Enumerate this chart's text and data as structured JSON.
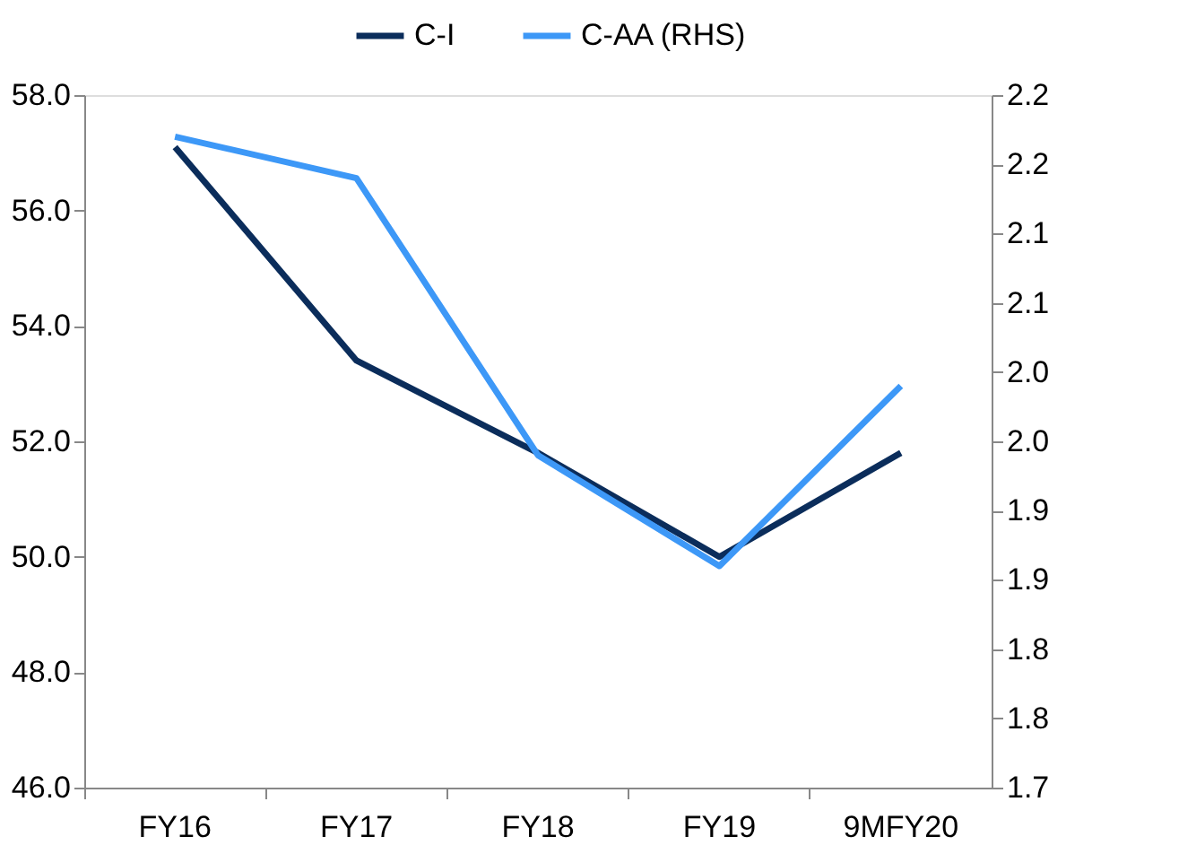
{
  "chart_data": {
    "type": "line",
    "categories": [
      "FY16",
      "FY17",
      "FY18",
      "FY19",
      "9MFY20"
    ],
    "series": [
      {
        "name": "C-I",
        "color": "#0b2d5b",
        "values": [
          57.1,
          53.4,
          51.8,
          50.0,
          51.8
        ]
      },
      {
        "name": "C-AA (RHS)",
        "color": "#3d98f7",
        "axis": "y2",
        "values": [
          2.17,
          2.14,
          1.94,
          1.86,
          1.99
        ]
      }
    ],
    "ylim": [
      46,
      58
    ],
    "yticks": [
      {
        "value": 46,
        "label": "46.0"
      },
      {
        "value": 48,
        "label": "48.0"
      },
      {
        "value": 50,
        "label": "50.0"
      },
      {
        "value": 52,
        "label": "52.0"
      },
      {
        "value": 54,
        "label": "54.0"
      },
      {
        "value": 56,
        "label": "56.0"
      },
      {
        "value": 58,
        "label": "58.0"
      }
    ],
    "y2lim": [
      1.7,
      2.2
    ],
    "y2ticks": [
      {
        "value": 1.7,
        "label": "1.7"
      },
      {
        "value": 1.75,
        "label": "1.8"
      },
      {
        "value": 1.8,
        "label": "1.8"
      },
      {
        "value": 1.85,
        "label": "1.9"
      },
      {
        "value": 1.9,
        "label": "1.9"
      },
      {
        "value": 1.95,
        "label": "2.0"
      },
      {
        "value": 2.0,
        "label": "2.0"
      },
      {
        "value": 2.05,
        "label": "2.1"
      },
      {
        "value": 2.1,
        "label": "2.1"
      },
      {
        "value": 2.15,
        "label": "2.2"
      },
      {
        "value": 2.2,
        "label": "2.2"
      }
    ],
    "grid": false,
    "legend": "top",
    "marker": "none",
    "line_style": "solid"
  }
}
